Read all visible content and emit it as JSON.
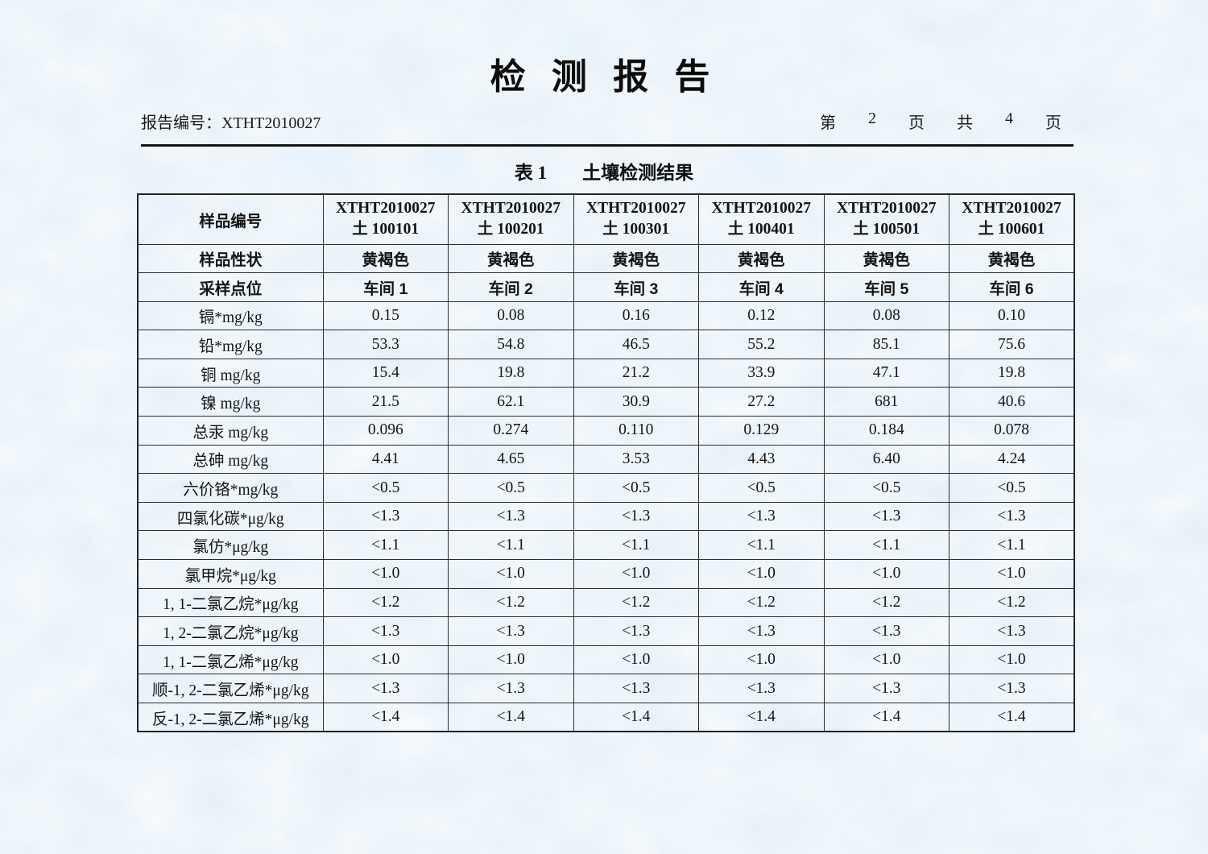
{
  "page": {
    "title": "检 测 报 告",
    "report_no": "报告编号：XTHT2010027",
    "pagination": [
      "第",
      "2",
      "页",
      "共",
      "4",
      "页"
    ],
    "table_caption": {
      "no": "表 1",
      "title": "土壤检测结果"
    }
  },
  "table": {
    "sample_id_row": {
      "label": "样品编号",
      "cells": [
        {
          "id": "XTHT2010027",
          "sub": "土 100101"
        },
        {
          "id": "XTHT2010027",
          "sub": "土 100201"
        },
        {
          "id": "XTHT2010027",
          "sub": "土 100301"
        },
        {
          "id": "XTHT2010027",
          "sub": "土 100401"
        },
        {
          "id": "XTHT2010027",
          "sub": "土 100501"
        },
        {
          "id": "XTHT2010027",
          "sub": "土 100601"
        }
      ]
    },
    "attr_rows": [
      {
        "label": "样品性状",
        "cells": [
          "黄褐色",
          "黄褐色",
          "黄褐色",
          "黄褐色",
          "黄褐色",
          "黄褐色"
        ]
      },
      {
        "label": "采样点位",
        "cells": [
          "车间 1",
          "车间 2",
          "车间 3",
          "车间 4",
          "车间 5",
          "车间 6"
        ]
      }
    ],
    "data_rows": [
      {
        "label": "镉*mg/kg",
        "values": [
          "0.15",
          "0.08",
          "0.16",
          "0.12",
          "0.08",
          "0.10"
        ]
      },
      {
        "label": "铅*mg/kg",
        "values": [
          "53.3",
          "54.8",
          "46.5",
          "55.2",
          "85.1",
          "75.6"
        ]
      },
      {
        "label": "铜 mg/kg",
        "values": [
          "15.4",
          "19.8",
          "21.2",
          "33.9",
          "47.1",
          "19.8"
        ]
      },
      {
        "label": "镍 mg/kg",
        "values": [
          "21.5",
          "62.1",
          "30.9",
          "27.2",
          "681",
          "40.6"
        ]
      },
      {
        "label": "总汞 mg/kg",
        "values": [
          "0.096",
          "0.274",
          "0.110",
          "0.129",
          "0.184",
          "0.078"
        ]
      },
      {
        "label": "总砷 mg/kg",
        "values": [
          "4.41",
          "4.65",
          "3.53",
          "4.43",
          "6.40",
          "4.24"
        ]
      },
      {
        "label": "六价铬*mg/kg",
        "values": [
          "<0.5",
          "<0.5",
          "<0.5",
          "<0.5",
          "<0.5",
          "<0.5"
        ]
      },
      {
        "label": "四氯化碳*μg/kg",
        "values": [
          "<1.3",
          "<1.3",
          "<1.3",
          "<1.3",
          "<1.3",
          "<1.3"
        ]
      },
      {
        "label": "氯仿*μg/kg",
        "values": [
          "<1.1",
          "<1.1",
          "<1.1",
          "<1.1",
          "<1.1",
          "<1.1"
        ]
      },
      {
        "label": "氯甲烷*μg/kg",
        "values": [
          "<1.0",
          "<1.0",
          "<1.0",
          "<1.0",
          "<1.0",
          "<1.0"
        ]
      },
      {
        "label": "1, 1-二氯乙烷*μg/kg",
        "values": [
          "<1.2",
          "<1.2",
          "<1.2",
          "<1.2",
          "<1.2",
          "<1.2"
        ]
      },
      {
        "label": "1, 2-二氯乙烷*μg/kg",
        "values": [
          "<1.3",
          "<1.3",
          "<1.3",
          "<1.3",
          "<1.3",
          "<1.3"
        ]
      },
      {
        "label": "1, 1-二氯乙烯*μg/kg",
        "values": [
          "<1.0",
          "<1.0",
          "<1.0",
          "<1.0",
          "<1.0",
          "<1.0"
        ]
      },
      {
        "label": "顺-1, 2-二氯乙烯*μg/kg",
        "values": [
          "<1.3",
          "<1.3",
          "<1.3",
          "<1.3",
          "<1.3",
          "<1.3"
        ]
      },
      {
        "label": "反-1, 2-二氯乙烯*μg/kg",
        "values": [
          "<1.4",
          "<1.4",
          "<1.4",
          "<1.4",
          "<1.4",
          "<1.4"
        ]
      }
    ]
  },
  "colors": {
    "paper_base": "#d2e3f2",
    "text": "#141414",
    "border": "#2b2b2b"
  }
}
